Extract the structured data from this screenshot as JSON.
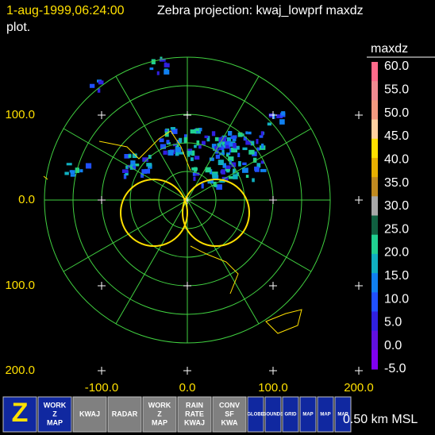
{
  "header": {
    "time": "1-aug-1999,06:24:00",
    "title": "Zebra projection: kwaj_lowprf maxdz",
    "title_cont": "plot."
  },
  "y_labels": [
    "100.0",
    "0.0",
    "100.0",
    "200.0"
  ],
  "x_labels": [
    "-100.0",
    "0.0",
    "100.0",
    "200.0"
  ],
  "colorbar": {
    "title": "maxdz",
    "labels": [
      "60.0",
      "55.0",
      "50.0",
      "45.0",
      "40.0",
      "35.0",
      "30.0",
      "25.0",
      "20.0",
      "15.0",
      "10.0",
      "5.0",
      "0.0",
      "-5.0"
    ],
    "colors": [
      "#ff6a8a",
      "#f08a90",
      "#f49a80",
      "#ffd0a0",
      "#ffe000",
      "#e8b000",
      "#c08a20",
      "#a8a8a8",
      "#106040",
      "#20d090",
      "#10b0c0",
      "#1080f0",
      "#2050ff",
      "#3020e0",
      "#6010e0",
      "#8000f0"
    ]
  },
  "status": "0.50 km MSL",
  "toolbar": [
    {
      "lines": [
        "Z"
      ],
      "bg": "#1028a0"
    },
    {
      "lines": [
        "WORK",
        "Z",
        "MAP"
      ],
      "bg": "#1028a0"
    },
    {
      "lines": [
        "KWAJ"
      ],
      "bg": "#808080"
    },
    {
      "lines": [
        "RADAR"
      ],
      "bg": "#808080"
    },
    {
      "lines": [
        "WORK",
        "Z",
        "MAP"
      ],
      "bg": "#808080"
    },
    {
      "lines": [
        "RAIN",
        "RATE",
        "KWAJ"
      ],
      "bg": "#808080"
    },
    {
      "lines": [
        "CONV",
        "SF",
        "KWA"
      ],
      "bg": "#808080"
    },
    {
      "lines": [
        "GLOBE"
      ],
      "bg": "#1028a0"
    },
    {
      "lines": [
        "BOUNDS"
      ],
      "bg": "#1028a0"
    },
    {
      "lines": [
        "GRID"
      ],
      "bg": "#1028a0"
    },
    {
      "lines": [
        "MAP"
      ],
      "bg": "#1028a0"
    },
    {
      "lines": [
        "MAP"
      ],
      "bg": "#1028a0"
    },
    {
      "lines": [
        "MAP"
      ],
      "bg": "#1028a0"
    }
  ]
}
